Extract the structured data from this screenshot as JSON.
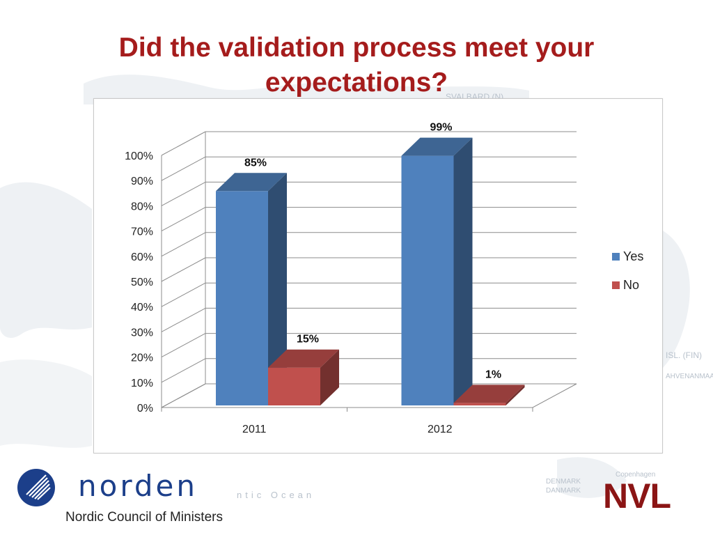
{
  "slide": {
    "title": "Did the validation process meet your expectations?"
  },
  "chart_data": {
    "type": "bar",
    "categories": [
      "2011",
      "2012"
    ],
    "series": [
      {
        "name": "Yes",
        "values": [
          85,
          99
        ],
        "labels": [
          "85%",
          "99%"
        ],
        "color": "#4f81bd"
      },
      {
        "name": "No",
        "values": [
          15,
          1
        ],
        "labels": [
          "15%",
          "1%"
        ],
        "color": "#c0504d"
      }
    ],
    "y_ticks": [
      "0%",
      "10%",
      "20%",
      "30%",
      "40%",
      "50%",
      "60%",
      "70%",
      "80%",
      "90%",
      "100%"
    ],
    "ylim": [
      0,
      100
    ],
    "grid": true,
    "legend_position": "right",
    "style": "3d-clustered-column"
  },
  "background_map_labels": [
    "SVALBARD (N)",
    "ISL. (FIN)",
    "AHVENANMAA",
    "DENMARK",
    "DANMARK",
    "Copenhagen",
    "ntic Ocean"
  ],
  "footer": {
    "logo_text": "norden",
    "organization": "Nordic Council of Ministers",
    "partner_logo": "NVL"
  }
}
